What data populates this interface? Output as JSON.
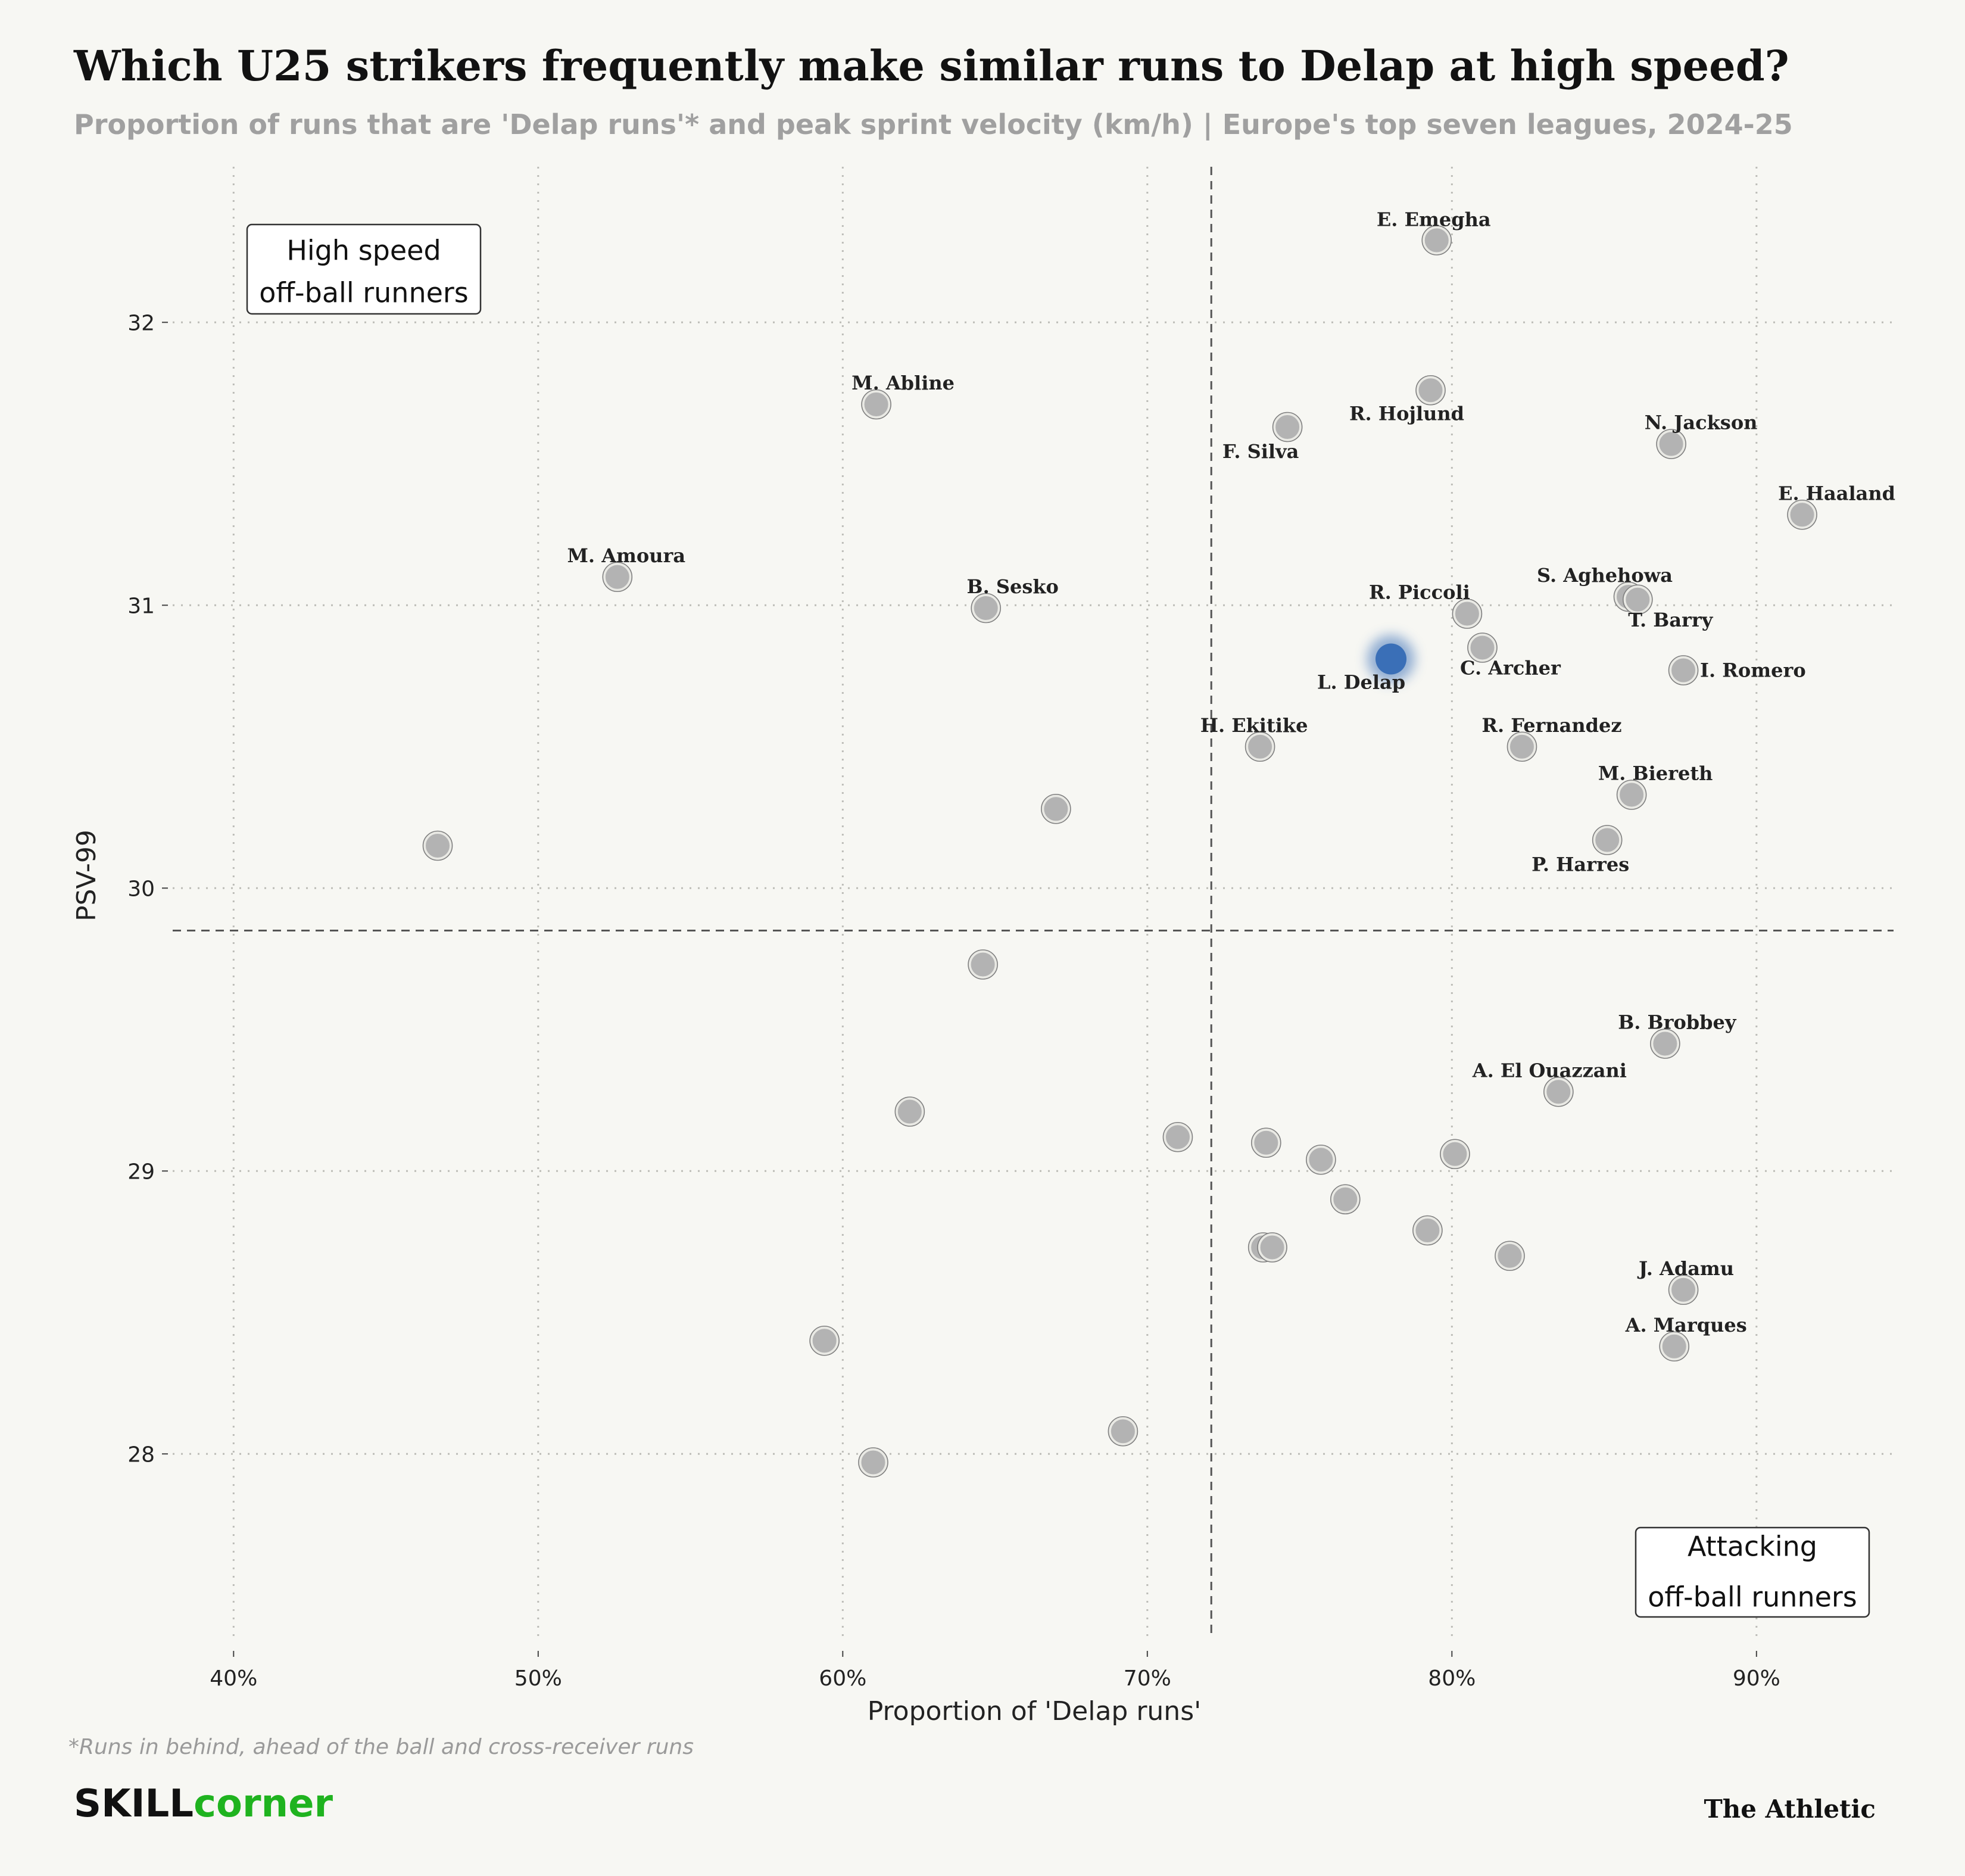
{
  "chart_data": {
    "type": "scatter",
    "title": "Which U25 strikers frequently make similar runs to Delap at high speed?",
    "subtitle": "Proportion of runs that are 'Delap runs'* and peak sprint velocity (km/h) | Europe's top seven leagues, 2024-25",
    "xlabel": "Proportion of 'Delap runs'",
    "ylabel": "PSV-99",
    "xlim": [
      38,
      94.5
    ],
    "ylim": [
      27.35,
      32.55
    ],
    "x_ticks": [
      40,
      50,
      60,
      70,
      80,
      90
    ],
    "x_tick_labels": [
      "40%",
      "50%",
      "60%",
      "70%",
      "80%",
      "90%"
    ],
    "y_ticks": [
      28,
      29,
      30,
      31,
      32
    ],
    "y_tick_labels": [
      "28",
      "29",
      "30",
      "31",
      "32"
    ],
    "reference_lines": {
      "x": 72.1,
      "y": 29.85
    },
    "grid": true,
    "highlight": "L. Delap",
    "colors": {
      "point": "#b3b3b3",
      "highlight": "#3a6fb7",
      "background": "#f7f7f3"
    },
    "quadrant_labels": [
      {
        "position": "top-left",
        "lines": [
          "High speed",
          "off-ball runners"
        ]
      },
      {
        "position": "bottom-right",
        "lines": [
          "Attacking",
          "off-ball runners"
        ]
      }
    ],
    "points": [
      {
        "x": 79.5,
        "y": 32.29,
        "label": "E. Emegha"
      },
      {
        "x": 79.3,
        "y": 31.76,
        "label": "R. Hojlund"
      },
      {
        "x": 61.1,
        "y": 31.71,
        "label": "M. Abline"
      },
      {
        "x": 74.6,
        "y": 31.63,
        "label": "F. Silva"
      },
      {
        "x": 87.2,
        "y": 31.57,
        "label": "N. Jackson"
      },
      {
        "x": 91.5,
        "y": 31.32,
        "label": "E. Haaland"
      },
      {
        "x": 52.6,
        "y": 31.1,
        "label": "M. Amoura"
      },
      {
        "x": 64.7,
        "y": 30.99,
        "label": "B. Sesko"
      },
      {
        "x": 80.5,
        "y": 30.97,
        "label": "R. Piccoli"
      },
      {
        "x": 85.8,
        "y": 31.03,
        "label": "S. Aghehowa"
      },
      {
        "x": 86.1,
        "y": 31.02,
        "label": "T. Barry"
      },
      {
        "x": 81.0,
        "y": 30.85,
        "label": "C. Archer"
      },
      {
        "x": 87.6,
        "y": 30.77,
        "label": "I. Romero"
      },
      {
        "x": 78.0,
        "y": 30.81,
        "label": "L. Delap"
      },
      {
        "x": 73.7,
        "y": 30.5,
        "label": "H. Ekitike"
      },
      {
        "x": 82.3,
        "y": 30.5,
        "label": "R. Fernandez"
      },
      {
        "x": 85.9,
        "y": 30.33,
        "label": "M. Biereth"
      },
      {
        "x": 85.1,
        "y": 30.17,
        "label": "P. Harres"
      },
      {
        "x": 87.0,
        "y": 29.45,
        "label": "B. Brobbey"
      },
      {
        "x": 83.5,
        "y": 29.28,
        "label": "A. El Ouazzani"
      },
      {
        "x": 87.6,
        "y": 28.58,
        "label": "J. Adamu"
      },
      {
        "x": 87.3,
        "y": 28.38,
        "label": "A. Marques"
      },
      {
        "x": 46.7,
        "y": 30.15,
        "label": ""
      },
      {
        "x": 67.0,
        "y": 30.28,
        "label": ""
      },
      {
        "x": 64.6,
        "y": 29.73,
        "label": ""
      },
      {
        "x": 62.2,
        "y": 29.21,
        "label": ""
      },
      {
        "x": 71.0,
        "y": 29.12,
        "label": ""
      },
      {
        "x": 73.9,
        "y": 29.1,
        "label": ""
      },
      {
        "x": 75.7,
        "y": 29.04,
        "label": ""
      },
      {
        "x": 80.1,
        "y": 29.06,
        "label": ""
      },
      {
        "x": 76.5,
        "y": 28.9,
        "label": ""
      },
      {
        "x": 79.2,
        "y": 28.79,
        "label": ""
      },
      {
        "x": 73.8,
        "y": 28.73,
        "label": ""
      },
      {
        "x": 74.1,
        "y": 28.73,
        "label": ""
      },
      {
        "x": 81.9,
        "y": 28.7,
        "label": ""
      },
      {
        "x": 59.4,
        "y": 28.4,
        "label": ""
      },
      {
        "x": 69.2,
        "y": 28.08,
        "label": ""
      },
      {
        "x": 61.0,
        "y": 27.97,
        "label": ""
      }
    ]
  },
  "footnote": "*Runs in behind, ahead of the ball and cross-receiver runs",
  "branding": {
    "skill": "SKILL",
    "corner": "corner",
    "publisher": "The Athletic"
  }
}
